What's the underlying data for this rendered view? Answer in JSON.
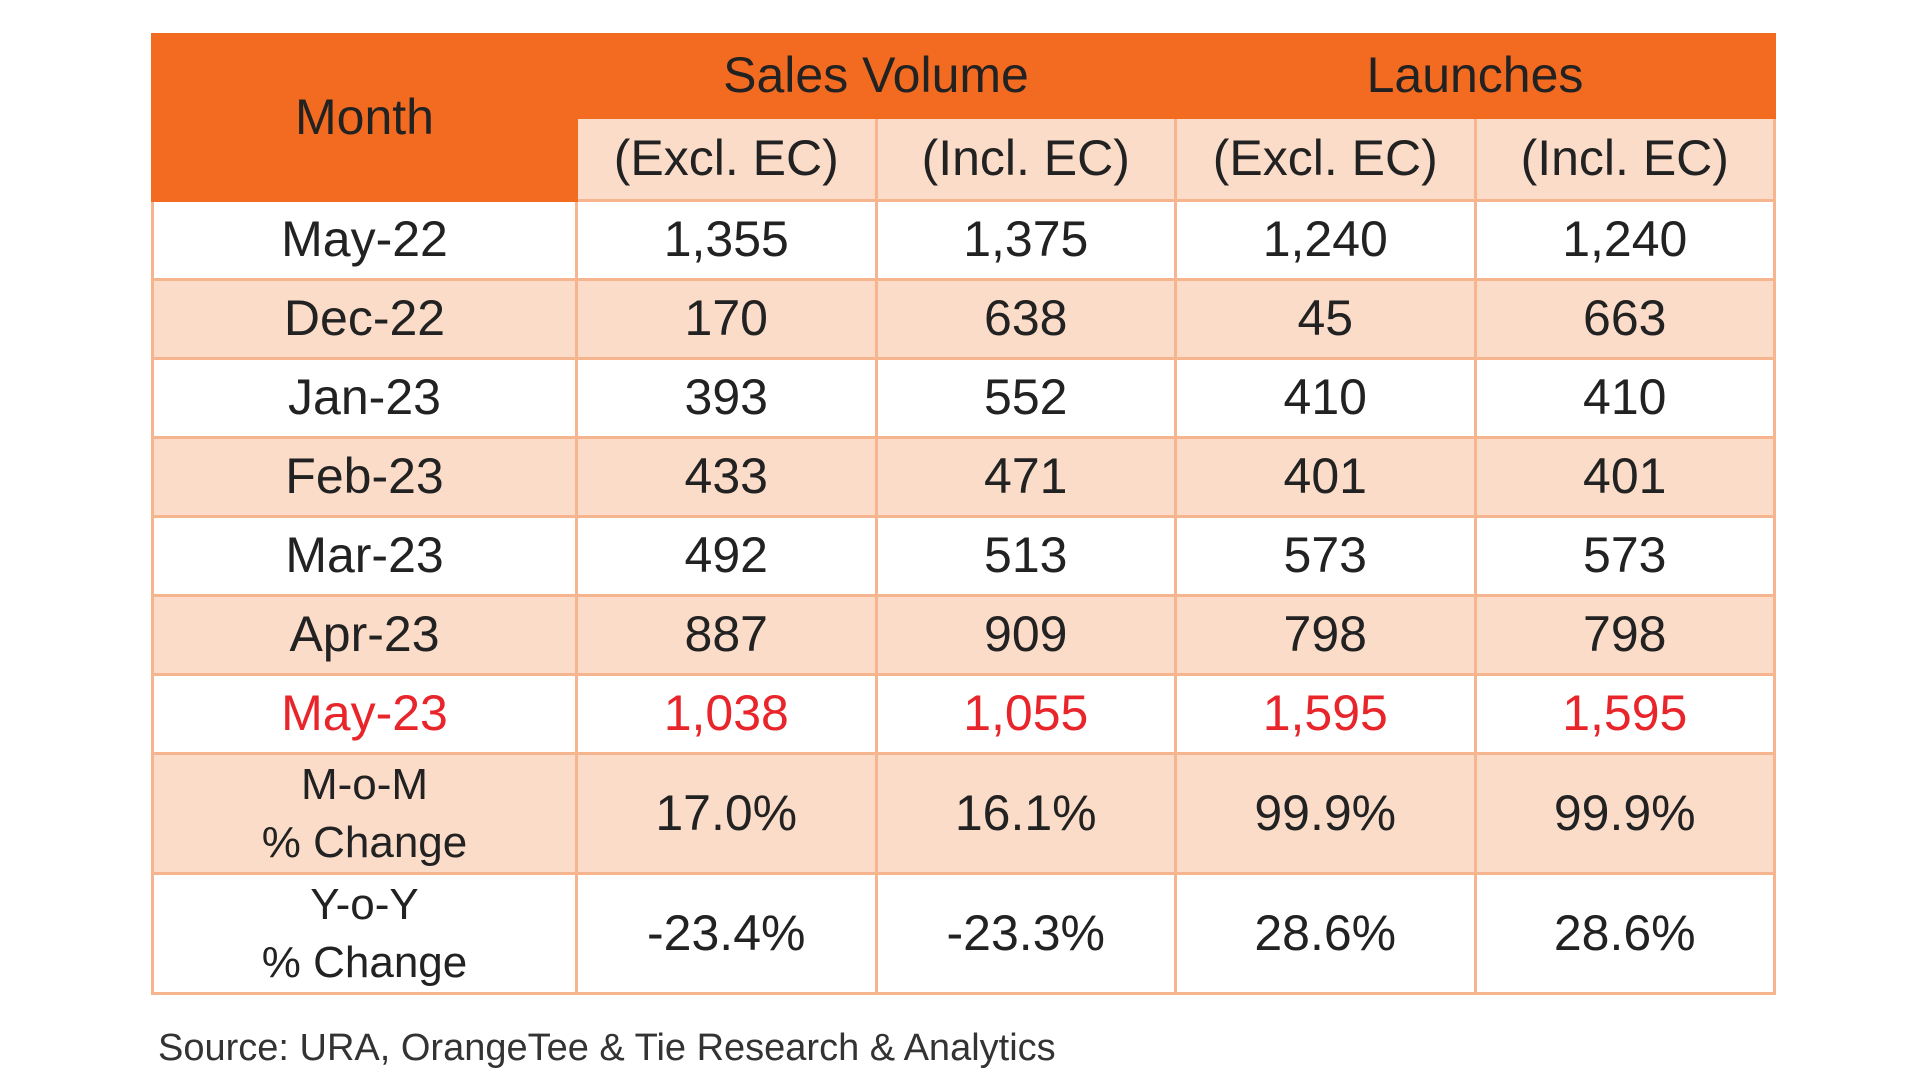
{
  "table": {
    "header": {
      "month_label": "Month",
      "group_sales": "Sales Volume",
      "group_launches": "Launches",
      "sub_labels": [
        "(Excl. EC)",
        "(Incl. EC)",
        "(Excl. EC)",
        "(Incl. EC)"
      ]
    },
    "rows": [
      {
        "month": "May-22",
        "values": [
          "1,355",
          "1,375",
          "1,240",
          "1,240"
        ]
      },
      {
        "month": "Dec-22",
        "values": [
          "170",
          "638",
          "45",
          "663"
        ]
      },
      {
        "month": "Jan-23",
        "values": [
          "393",
          "552",
          "410",
          "410"
        ]
      },
      {
        "month": "Feb-23",
        "values": [
          "433",
          "471",
          "401",
          "401"
        ]
      },
      {
        "month": "Mar-23",
        "values": [
          "492",
          "513",
          "573",
          "573"
        ]
      },
      {
        "month": "Apr-23",
        "values": [
          "887",
          "909",
          "798",
          "798"
        ]
      },
      {
        "month": "May-23",
        "values": [
          "1,038",
          "1,055",
          "1,595",
          "1,595"
        ]
      },
      {
        "month_line1": "M-o-M",
        "month_line2": "% Change",
        "values": [
          "17.0%",
          "16.1%",
          "99.9%",
          "99.9%"
        ]
      },
      {
        "month_line1": "Y-o-Y",
        "month_line2": "% Change",
        "values": [
          "-23.4%",
          "-23.3%",
          "28.6%",
          "28.6%"
        ]
      }
    ]
  },
  "source": "Source: URA, OrangeTee & Tie Research & Analytics",
  "colors": {
    "header_orange": "#f26b21",
    "band_peach": "#fbdcc9",
    "border": "#f6b58f",
    "highlight_red": "#e8252a"
  },
  "chart_data": {
    "type": "table",
    "columns": [
      "Month",
      "Sales Volume (Excl. EC)",
      "Sales Volume (Incl. EC)",
      "Launches (Excl. EC)",
      "Launches (Incl. EC)"
    ],
    "rows": [
      [
        "May-22",
        1355,
        1375,
        1240,
        1240
      ],
      [
        "Dec-22",
        170,
        638,
        45,
        663
      ],
      [
        "Jan-23",
        393,
        552,
        410,
        410
      ],
      [
        "Feb-23",
        433,
        471,
        401,
        401
      ],
      [
        "Mar-23",
        492,
        513,
        573,
        573
      ],
      [
        "Apr-23",
        887,
        909,
        798,
        798
      ],
      [
        "May-23",
        1038,
        1055,
        1595,
        1595
      ],
      [
        "M-o-M % Change",
        17.0,
        16.1,
        99.9,
        99.9
      ],
      [
        "Y-o-Y % Change",
        -23.4,
        -23.3,
        28.6,
        28.6
      ]
    ]
  }
}
